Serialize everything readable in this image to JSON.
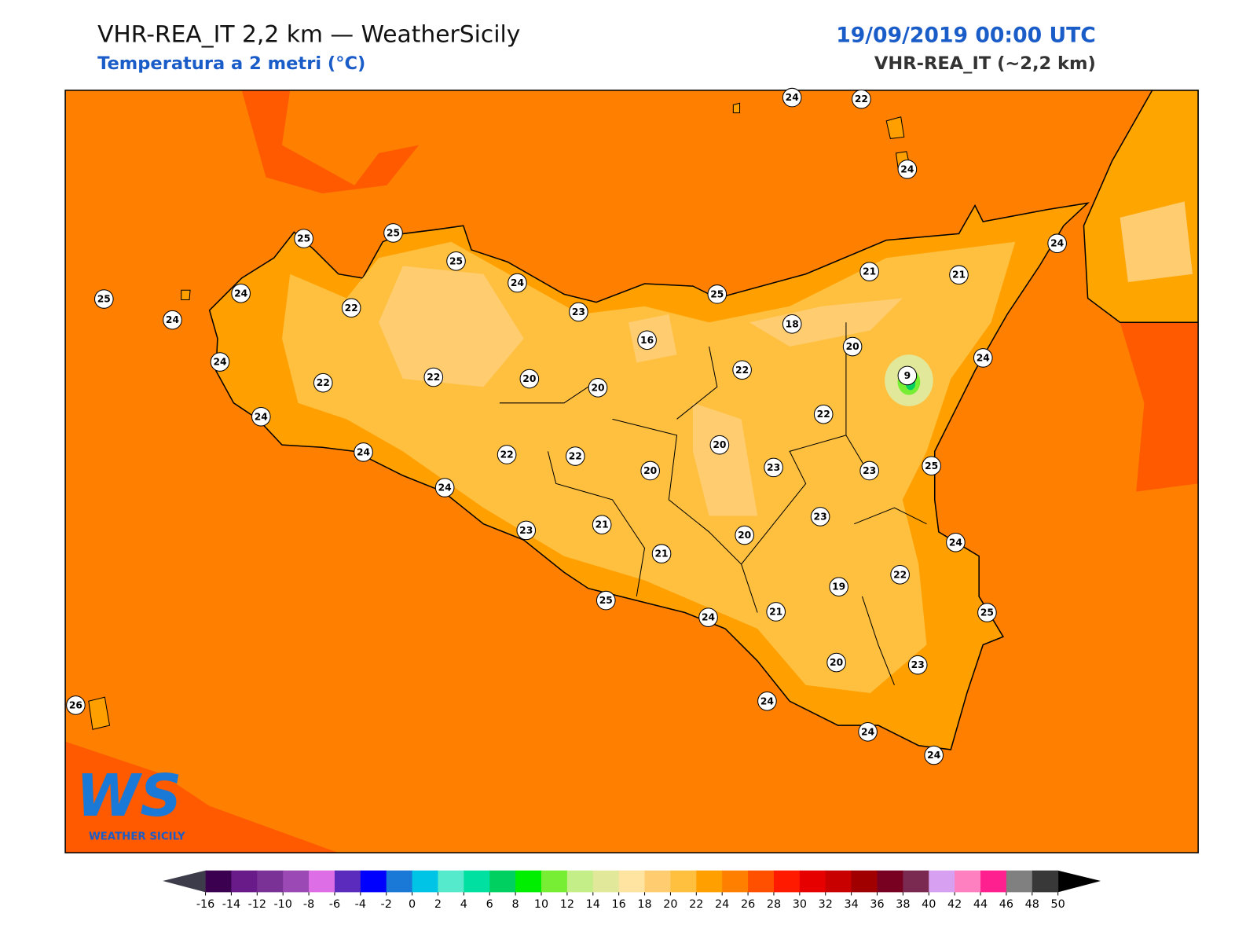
{
  "header": {
    "title": "VHR-REA_IT 2,2 km — WeatherSicily",
    "subtitle": "Temperatura a 2 metri (°C)",
    "datetime": "19/09/2019 00:00 UTC",
    "model": "VHR-REA_IT (~2,2 km)"
  },
  "logo": {
    "mark": "WS",
    "name": "WEATHER SICILY"
  },
  "stations": [
    25,
    25,
    25,
    24,
    23,
    25,
    21,
    21,
    24,
    24,
    22,
    24,
    25,
    24,
    24,
    22,
    24,
    22,
    24,
    22,
    20,
    16,
    18,
    20,
    22,
    9,
    24,
    20,
    22,
    24,
    22,
    22,
    20,
    20,
    23,
    23,
    25,
    24,
    23,
    23,
    21,
    20,
    21,
    24,
    19,
    22,
    25,
    24,
    21,
    25,
    20,
    23,
    24,
    24,
    24,
    26
  ],
  "colorbar": {
    "ticks": [
      -16,
      -14,
      -12,
      -10,
      -8,
      -6,
      -4,
      -2,
      0,
      2,
      4,
      6,
      8,
      10,
      12,
      14,
      16,
      18,
      20,
      22,
      24,
      26,
      28,
      30,
      32,
      34,
      36,
      38,
      40,
      42,
      44,
      46,
      48,
      50
    ],
    "colors": [
      "#3c0050",
      "#6a1b8a",
      "#7b3296",
      "#9b4ab5",
      "#dd6ee6",
      "#5a2bbd",
      "#0000ff",
      "#1a78d6",
      "#00c4e6",
      "#55eacb",
      "#00e0a0",
      "#00d060",
      "#00ee00",
      "#77ee33",
      "#c4ee88",
      "#e2e89a",
      "#ffe3a0",
      "#ffcc70",
      "#ffc040",
      "#ff9f00",
      "#ff8000",
      "#ff5000",
      "#ff1a00",
      "#e60000",
      "#c80000",
      "#a00000",
      "#780020",
      "#7a2a50",
      "#d8a0f0",
      "#ff80c0",
      "#ff2090",
      "#808080",
      "#383838"
    ]
  }
}
